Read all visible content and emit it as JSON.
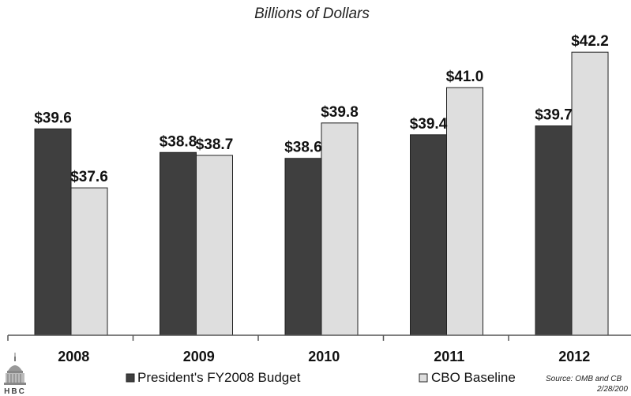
{
  "chart_data": {
    "type": "bar",
    "title": "Billions of Dollars",
    "categories": [
      "2008",
      "2009",
      "2010",
      "2011",
      "2012"
    ],
    "series": [
      {
        "name": "President's FY2008 Budget",
        "values": [
          39.6,
          38.8,
          38.6,
          39.4,
          39.7
        ],
        "labels": [
          "$39.6",
          "$38.8",
          "$38.6",
          "$39.4",
          "$39.7"
        ],
        "color": "#3f3f3f"
      },
      {
        "name": "CBO Baseline",
        "values": [
          37.6,
          38.7,
          39.8,
          41.0,
          42.2
        ],
        "labels": [
          "$37.6",
          "$38.7",
          "$39.8",
          "$41.0",
          "$42.2"
        ],
        "color": "#dedede"
      }
    ],
    "ylim": [
      32.6,
      42.9
    ],
    "grid": false,
    "legend": "bottom"
  },
  "source": {
    "line1": "Source:  OMB and CB",
    "line2": "2/28/200"
  },
  "logo": {
    "text": "HBC"
  },
  "colors": {
    "bar_stroke": "#222222",
    "axis": "#555555"
  }
}
